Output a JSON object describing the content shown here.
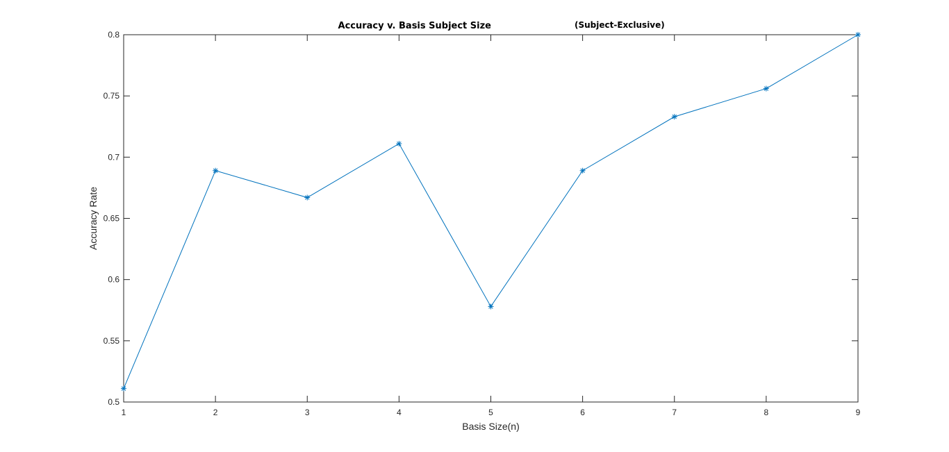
{
  "chart_data": {
    "type": "line",
    "title": "Accuracy v. Basis Subject Size",
    "subtitle": "(Subject-Exclusive)",
    "xlabel": "Basis Size(n)",
    "ylabel": "Accuracy Rate",
    "x": [
      1,
      2,
      3,
      4,
      5,
      6,
      7,
      8,
      9
    ],
    "series": [
      {
        "values": [
          0.511,
          0.689,
          0.667,
          0.711,
          0.578,
          0.689,
          0.733,
          0.756,
          0.8
        ]
      }
    ],
    "xlim": [
      1,
      9
    ],
    "ylim": [
      0.5,
      0.8
    ],
    "xticks": [
      1,
      2,
      3,
      4,
      5,
      6,
      7,
      8,
      9
    ],
    "yticks": [
      0.5,
      0.55,
      0.6,
      0.65,
      0.7,
      0.75,
      0.8
    ],
    "ytick_labels": [
      "0.5",
      "0.55",
      "0.6",
      "0.65",
      "0.7",
      "0.75",
      "0.8"
    ],
    "grid": false,
    "marker": "asterisk",
    "color": "#0072BD"
  }
}
